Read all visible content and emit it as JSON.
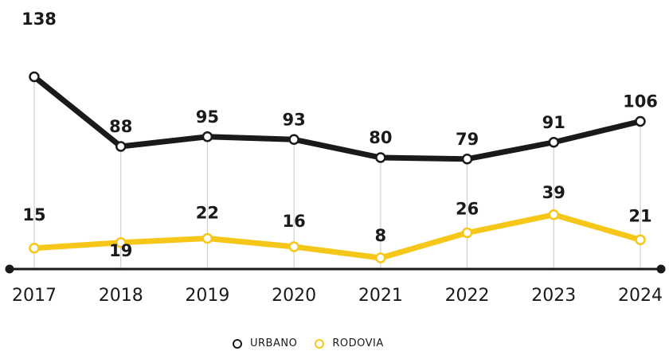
{
  "chart_data": {
    "type": "line",
    "categories": [
      "2017",
      "2018",
      "2019",
      "2020",
      "2021",
      "2022",
      "2023",
      "2024"
    ],
    "series": [
      {
        "name": "URBANO",
        "color": "#1a1a1a",
        "values": [
          138,
          88,
          95,
          93,
          80,
          79,
          91,
          106
        ]
      },
      {
        "name": "RODOVIA",
        "color": "#f6c619",
        "values": [
          15,
          19,
          22,
          16,
          8,
          26,
          39,
          21
        ]
      }
    ],
    "title": "",
    "xlabel": "",
    "ylabel": "",
    "legend_position": "bottom-center",
    "grid": "vertical drop lines"
  }
}
